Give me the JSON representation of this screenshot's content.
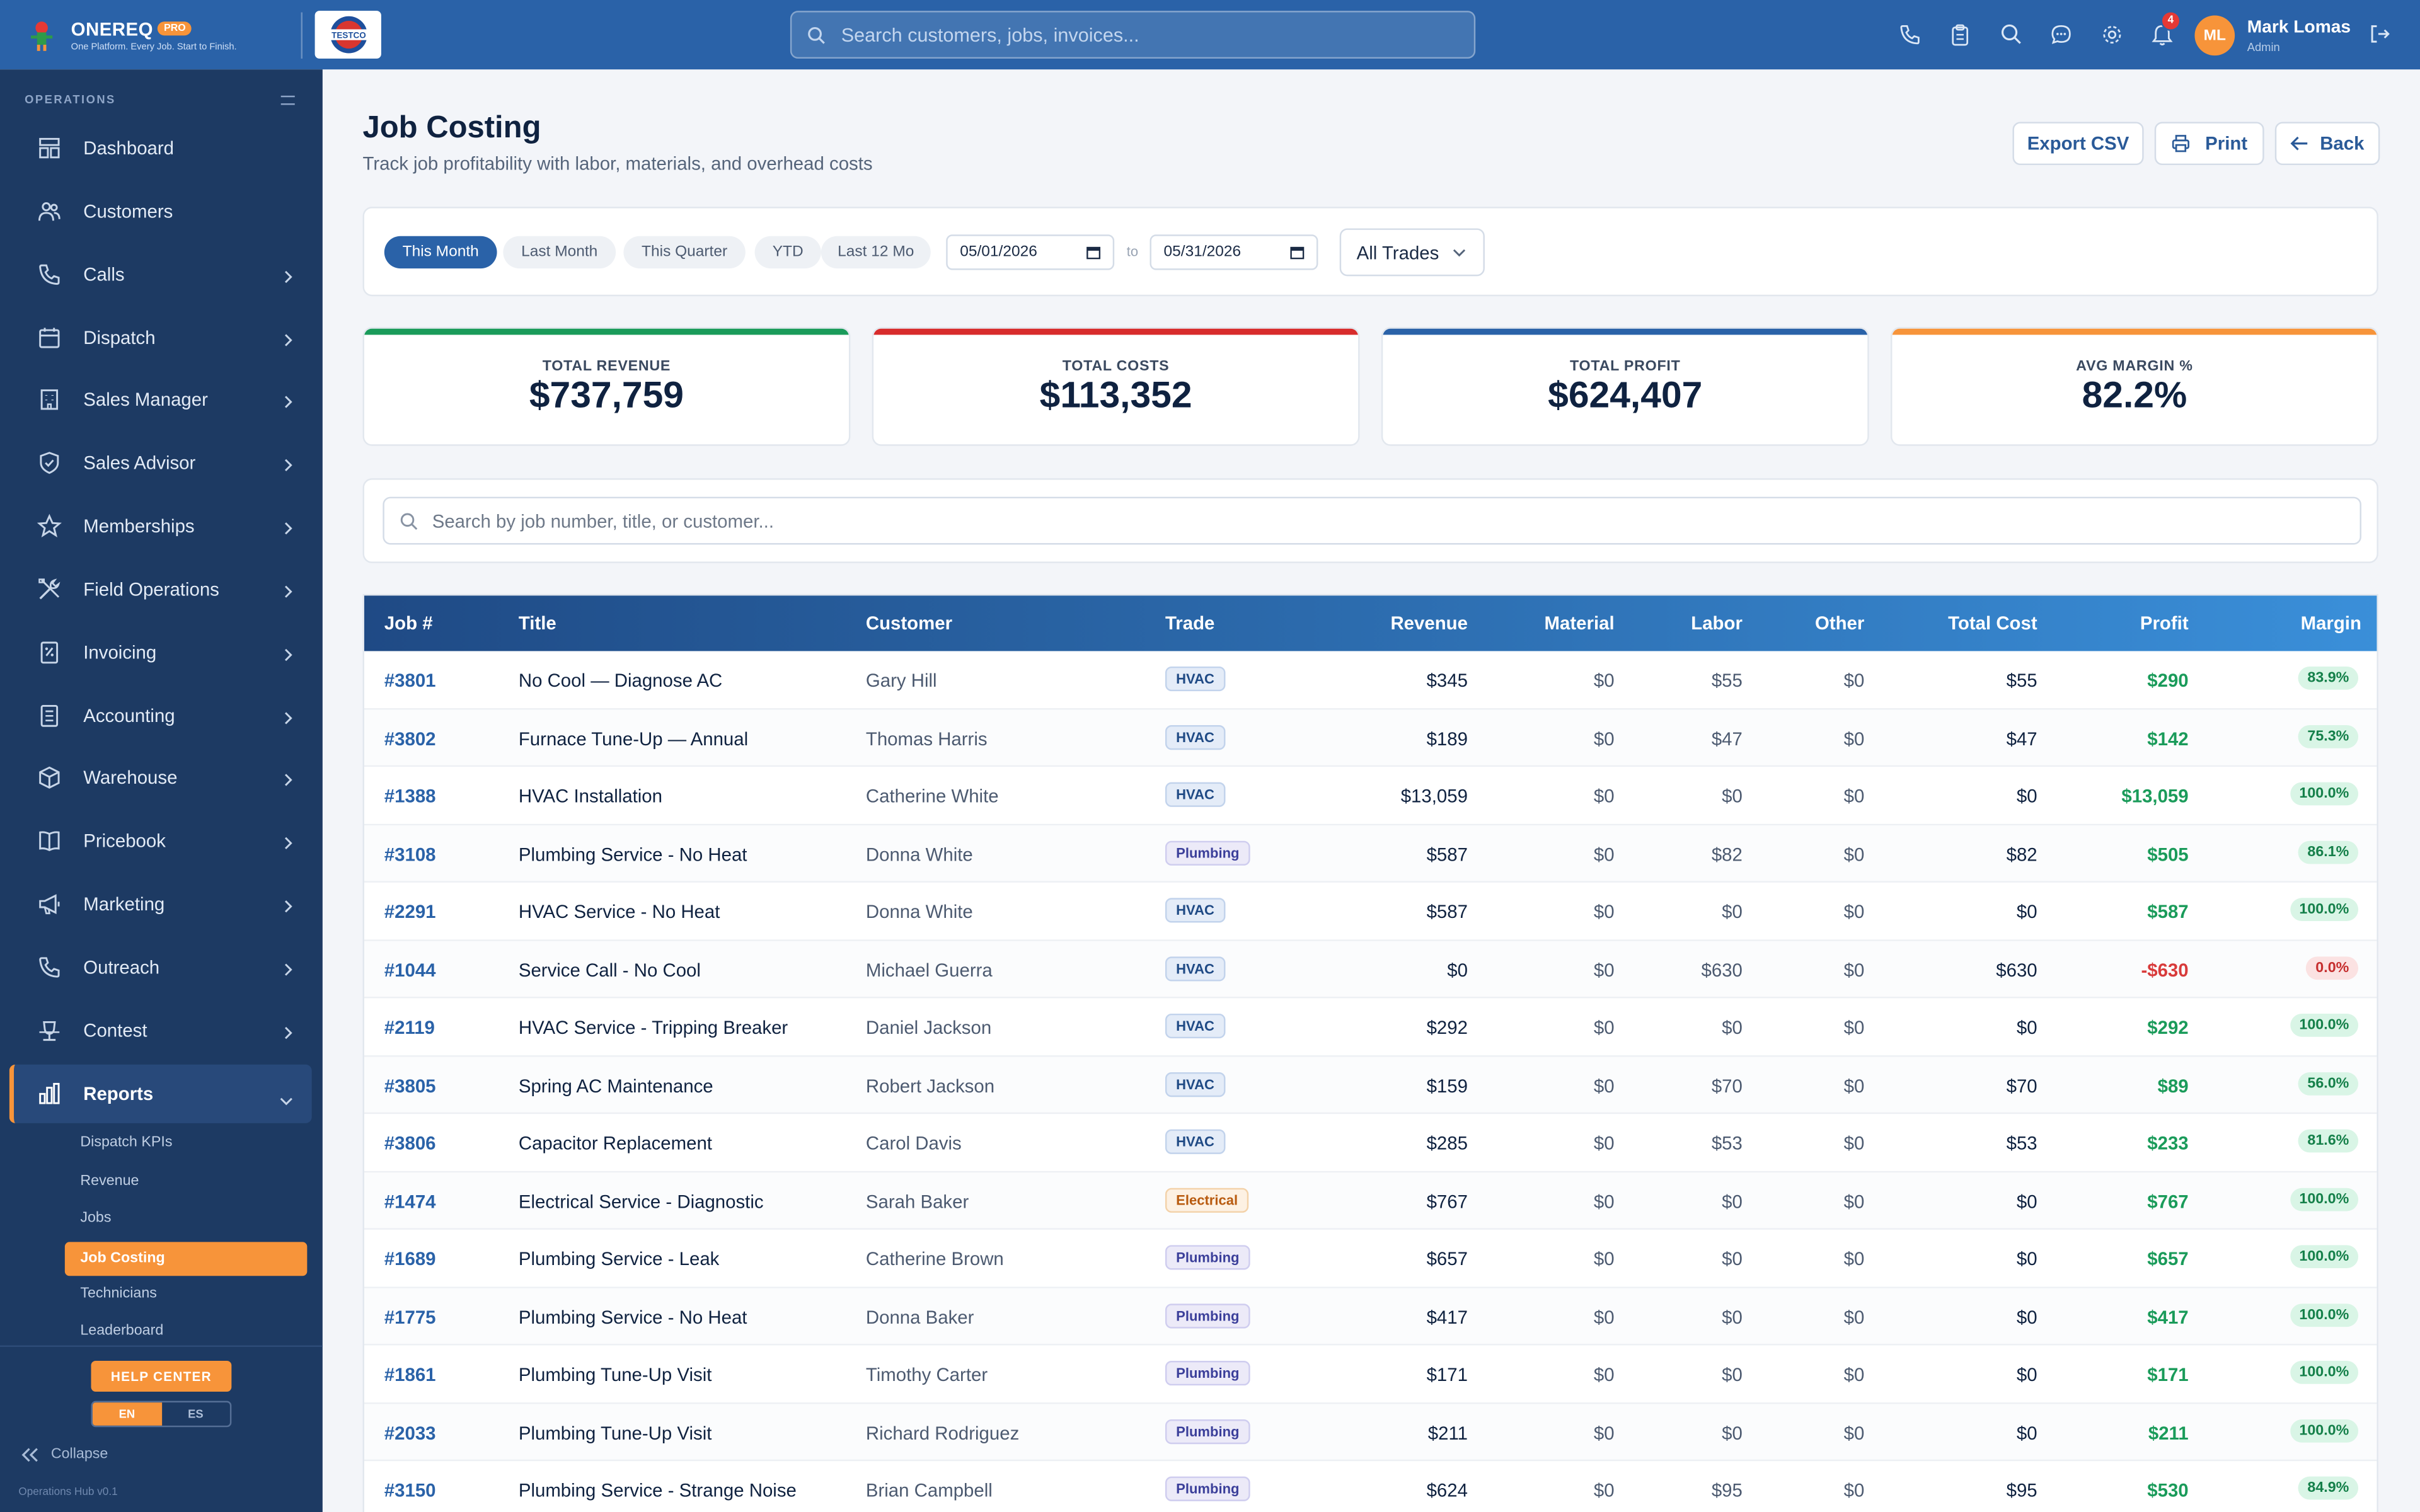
{
  "brand": {
    "name": "ONEREQ",
    "badge": "PRO",
    "tagline": "One Platform. Every Job. Start to Finish.",
    "company_logo_text": "TESTCO"
  },
  "topbar": {
    "search_placeholder": "Search customers, jobs, invoices...",
    "notification_count": "4"
  },
  "user": {
    "initials": "ML",
    "name": "Mark Lomas",
    "role": "Admin"
  },
  "sidebar": {
    "section": "OPERATIONS",
    "items": [
      {
        "label": "Dashboard",
        "icon": "dashboard-icon"
      },
      {
        "label": "Customers",
        "icon": "users-icon"
      },
      {
        "label": "Calls",
        "icon": "phone-icon"
      },
      {
        "label": "Dispatch",
        "icon": "calendar-icon"
      },
      {
        "label": "Sales Manager",
        "icon": "building-icon"
      },
      {
        "label": "Sales Advisor",
        "icon": "shield-icon"
      },
      {
        "label": "Memberships",
        "icon": "star-icon"
      },
      {
        "label": "Field Operations",
        "icon": "tools-icon"
      },
      {
        "label": "Invoicing",
        "icon": "invoice-icon"
      },
      {
        "label": "Accounting",
        "icon": "ledger-icon"
      },
      {
        "label": "Warehouse",
        "icon": "box-icon"
      },
      {
        "label": "Pricebook",
        "icon": "book-icon"
      },
      {
        "label": "Marketing",
        "icon": "megaphone-icon"
      },
      {
        "label": "Outreach",
        "icon": "phone-icon"
      },
      {
        "label": "Contest",
        "icon": "trophy-icon"
      },
      {
        "label": "Reports",
        "icon": "chart-icon"
      }
    ],
    "reports_sub": [
      "Dispatch KPIs",
      "Revenue",
      "Jobs",
      "Job Costing",
      "Technicians",
      "Leaderboard"
    ],
    "help_label": "HELP CENTER",
    "lang_en": "EN",
    "lang_es": "ES",
    "collapse_label": "Collapse",
    "version": "Operations Hub v0.1"
  },
  "page": {
    "title": "Job Costing",
    "subtitle": "Track job profitability with labor, materials, and overhead costs",
    "export_label": "Export CSV",
    "print_label": "Print",
    "back_label": "Back"
  },
  "filters": {
    "periods": [
      "This Month",
      "Last Month",
      "This Quarter",
      "YTD",
      "Last 12 Mo"
    ],
    "active_period": "This Month",
    "date_from": "05/01/2026",
    "date_to": "05/31/2026",
    "to_label": "to",
    "trade": "All Trades"
  },
  "kpis": [
    {
      "label": "TOTAL REVENUE",
      "value": "$737,759",
      "color": "#1a9b5a"
    },
    {
      "label": "TOTAL COSTS",
      "value": "$113,352",
      "color": "#d82c2c"
    },
    {
      "label": "TOTAL PROFIT",
      "value": "$624,407",
      "color": "#2a62a8"
    },
    {
      "label": "AVG MARGIN %",
      "value": "82.2%",
      "color": "#f7943a"
    }
  ],
  "table_search_placeholder": "Search by job number, title, or customer...",
  "table": {
    "headers": [
      "Job #",
      "Title",
      "Customer",
      "Trade",
      "Revenue",
      "Material",
      "Labor",
      "Other",
      "Total Cost",
      "Profit",
      "Margin"
    ],
    "rows": [
      {
        "job": "#3801",
        "title": "No Cool — Diagnose AC",
        "customer": "Gary Hill",
        "trade": "HVAC",
        "revenue": "$345",
        "material": "$0",
        "labor": "$55",
        "other": "$0",
        "total_cost": "$55",
        "profit": "$290",
        "margin": "83.9%"
      },
      {
        "job": "#3802",
        "title": "Furnace Tune-Up — Annual",
        "customer": "Thomas Harris",
        "trade": "HVAC",
        "revenue": "$189",
        "material": "$0",
        "labor": "$47",
        "other": "$0",
        "total_cost": "$47",
        "profit": "$142",
        "margin": "75.3%"
      },
      {
        "job": "#1388",
        "title": "HVAC Installation",
        "customer": "Catherine White",
        "trade": "HVAC",
        "revenue": "$13,059",
        "material": "$0",
        "labor": "$0",
        "other": "$0",
        "total_cost": "$0",
        "profit": "$13,059",
        "margin": "100.0%"
      },
      {
        "job": "#3108",
        "title": "Plumbing Service - No Heat",
        "customer": "Donna White",
        "trade": "Plumbing",
        "revenue": "$587",
        "material": "$0",
        "labor": "$82",
        "other": "$0",
        "total_cost": "$82",
        "profit": "$505",
        "margin": "86.1%"
      },
      {
        "job": "#2291",
        "title": "HVAC Service - No Heat",
        "customer": "Donna White",
        "trade": "HVAC",
        "revenue": "$587",
        "material": "$0",
        "labor": "$0",
        "other": "$0",
        "total_cost": "$0",
        "profit": "$587",
        "margin": "100.0%"
      },
      {
        "job": "#1044",
        "title": "Service Call - No Cool",
        "customer": "Michael Guerra",
        "trade": "HVAC",
        "revenue": "$0",
        "material": "$0",
        "labor": "$630",
        "other": "$0",
        "total_cost": "$630",
        "profit": "-$630",
        "margin": "0.0%"
      },
      {
        "job": "#2119",
        "title": "HVAC Service - Tripping Breaker",
        "customer": "Daniel Jackson",
        "trade": "HVAC",
        "revenue": "$292",
        "material": "$0",
        "labor": "$0",
        "other": "$0",
        "total_cost": "$0",
        "profit": "$292",
        "margin": "100.0%"
      },
      {
        "job": "#3805",
        "title": "Spring AC Maintenance",
        "customer": "Robert Jackson",
        "trade": "HVAC",
        "revenue": "$159",
        "material": "$0",
        "labor": "$70",
        "other": "$0",
        "total_cost": "$70",
        "profit": "$89",
        "margin": "56.0%"
      },
      {
        "job": "#3806",
        "title": "Capacitor Replacement",
        "customer": "Carol Davis",
        "trade": "HVAC",
        "revenue": "$285",
        "material": "$0",
        "labor": "$53",
        "other": "$0",
        "total_cost": "$53",
        "profit": "$233",
        "margin": "81.6%"
      },
      {
        "job": "#1474",
        "title": "Electrical Service - Diagnostic",
        "customer": "Sarah Baker",
        "trade": "Electrical",
        "revenue": "$767",
        "material": "$0",
        "labor": "$0",
        "other": "$0",
        "total_cost": "$0",
        "profit": "$767",
        "margin": "100.0%"
      },
      {
        "job": "#1689",
        "title": "Plumbing Service - Leak",
        "customer": "Catherine Brown",
        "trade": "Plumbing",
        "revenue": "$657",
        "material": "$0",
        "labor": "$0",
        "other": "$0",
        "total_cost": "$0",
        "profit": "$657",
        "margin": "100.0%"
      },
      {
        "job": "#1775",
        "title": "Plumbing Service - No Heat",
        "customer": "Donna Baker",
        "trade": "Plumbing",
        "revenue": "$417",
        "material": "$0",
        "labor": "$0",
        "other": "$0",
        "total_cost": "$0",
        "profit": "$417",
        "margin": "100.0%"
      },
      {
        "job": "#1861",
        "title": "Plumbing Tune-Up Visit",
        "customer": "Timothy Carter",
        "trade": "Plumbing",
        "revenue": "$171",
        "material": "$0",
        "labor": "$0",
        "other": "$0",
        "total_cost": "$0",
        "profit": "$171",
        "margin": "100.0%"
      },
      {
        "job": "#2033",
        "title": "Plumbing Tune-Up Visit",
        "customer": "Richard Rodriguez",
        "trade": "Plumbing",
        "revenue": "$211",
        "material": "$0",
        "labor": "$0",
        "other": "$0",
        "total_cost": "$0",
        "profit": "$211",
        "margin": "100.0%"
      },
      {
        "job": "#3150",
        "title": "Plumbing Service - Strange Noise",
        "customer": "Brian Campbell",
        "trade": "Plumbing",
        "revenue": "$624",
        "material": "$0",
        "labor": "$95",
        "other": "$0",
        "total_cost": "$95",
        "profit": "$530",
        "margin": "84.9%"
      }
    ]
  }
}
